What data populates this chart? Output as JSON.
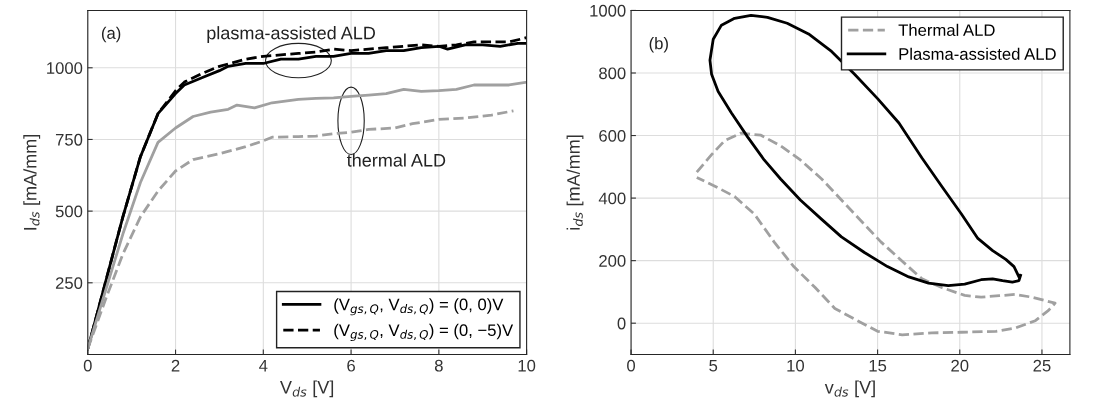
{
  "chart_data": [
    {
      "type": "line",
      "xlabel": "V$_{ds}$ [V]",
      "ylabel": "I$_{ds}$ [mA/mm]",
      "xlim": [
        0,
        10
      ],
      "ylim": [
        0,
        1200
      ],
      "xticks": [
        0,
        2,
        4,
        6,
        8,
        10
      ],
      "yticks": [
        250,
        500,
        750,
        1000
      ],
      "grid": true,
      "legend": "bottom right",
      "annotations": [
        "(a)",
        "plasma-assisted ALD",
        "thermal ALD"
      ],
      "series": [
        {
          "name": "(V$_{gs,Q}$, V$_{ds,Q}$) = (0, 0)V",
          "color": "#000000",
          "line_style": "solid",
          "x": [
            0,
            0.4,
            0.8,
            1.2,
            1.6,
            2.0,
            2.2,
            2.6,
            3.0,
            3.2,
            3.6,
            4.0,
            4.4,
            4.8,
            5.2,
            5.6,
            6.0,
            6.4,
            6.8,
            7.2,
            7.6,
            8.0,
            8.2,
            8.6,
            9.0,
            9.4,
            9.8,
            10
          ],
          "values": [
            20,
            250,
            480,
            690,
            840,
            910,
            940,
            965,
            990,
            1005,
            1015,
            1015,
            1030,
            1030,
            1040,
            1040,
            1050,
            1050,
            1060,
            1060,
            1070,
            1075,
            1065,
            1080,
            1080,
            1075,
            1085,
            1085
          ]
        },
        {
          "name": "(V$_{gs,Q}$, V$_{ds,Q}$) = (0, −5)V",
          "color": "#000000",
          "line_style": "dashed",
          "x": [
            0,
            0.4,
            0.8,
            1.2,
            1.6,
            2.0,
            2.2,
            2.6,
            3.0,
            3.6,
            4.0,
            4.4,
            4.8,
            5.2,
            5.6,
            6.0,
            6.4,
            6.8,
            7.2,
            7.6,
            8.0,
            8.4,
            8.8,
            9.2,
            9.6,
            10
          ],
          "values": [
            20,
            250,
            480,
            690,
            840,
            920,
            950,
            980,
            1005,
            1030,
            1040,
            1045,
            1050,
            1055,
            1065,
            1060,
            1065,
            1070,
            1075,
            1080,
            1075,
            1080,
            1090,
            1090,
            1090,
            1105
          ]
        },
        {
          "color": "#a0a0a0",
          "line_style": "solid",
          "x": [
            0,
            0.4,
            0.8,
            1.2,
            1.6,
            2.0,
            2.4,
            2.8,
            3.2,
            3.4,
            3.8,
            4.2,
            4.8,
            5.2,
            5.6,
            6.0,
            6.4,
            6.8,
            7.2,
            7.6,
            8.0,
            8.4,
            8.8,
            9.2,
            9.6,
            10
          ],
          "values": [
            20,
            220,
            420,
            600,
            740,
            790,
            830,
            845,
            855,
            870,
            860,
            878,
            890,
            893,
            895,
            900,
            905,
            910,
            925,
            918,
            920,
            925,
            940,
            940,
            940,
            950
          ]
        },
        {
          "color": "#a0a0a0",
          "line_style": "dashed",
          "x": [
            0,
            0.4,
            0.8,
            1.2,
            1.6,
            2.0,
            2.4,
            3.0,
            3.6,
            4.0,
            4.2,
            4.8,
            5.2,
            5.6,
            6.0,
            6.4,
            7.0,
            7.4,
            8.0,
            8.6,
            9.2,
            9.7
          ],
          "values": [
            20,
            190,
            350,
            480,
            570,
            640,
            680,
            700,
            725,
            745,
            758,
            760,
            762,
            770,
            775,
            785,
            790,
            805,
            820,
            825,
            835,
            850
          ]
        }
      ]
    },
    {
      "type": "line",
      "xlabel": "v$_{ds}$ [V]",
      "ylabel": "i$_{ds}$ [mA/mm]",
      "xlim": [
        0,
        26.7
      ],
      "ylim": [
        -100,
        1000
      ],
      "xticks": [
        0,
        5,
        10,
        15,
        20,
        25
      ],
      "yticks": [
        0,
        200,
        400,
        600,
        800,
        1000
      ],
      "grid": true,
      "legend": "top right",
      "annotations": [
        "(b)"
      ],
      "series": [
        {
          "name": "Thermal ALD",
          "color": "#a0a0a0",
          "line_style": "dashed",
          "x": [
            4.0,
            4.9,
            5.7,
            6.7,
            7.9,
            9.1,
            10.3,
            11.6,
            12.8,
            14,
            15.2,
            16.5,
            17.7,
            18.9,
            20.3,
            21.3,
            22.4,
            23.4,
            24.4,
            25.8,
            25.4,
            24.6,
            23.4,
            22.2,
            20.1,
            18.3,
            16.5,
            15,
            13.6,
            12.4,
            11.2,
            9.9,
            8.7,
            7.5,
            6.3,
            5.1,
            4.0
          ],
          "values": [
            483,
            539,
            584,
            608,
            601,
            567,
            522,
            461,
            394,
            327,
            260,
            198,
            142,
            114,
            89,
            83,
            88,
            92,
            83,
            64,
            41,
            8,
            -15,
            -26,
            -29,
            -31,
            -37,
            -26,
            13,
            47,
            114,
            181,
            260,
            349,
            405,
            438,
            466
          ]
        },
        {
          "name": "Plasma-assisted ALD",
          "color": "#000000",
          "line_style": "solid",
          "x": [
            23.6,
            23.3,
            22.8,
            22,
            21.1,
            20.1,
            18.9,
            17.7,
            16.3,
            15,
            13.6,
            12.2,
            10.8,
            9.5,
            8.3,
            7.3,
            6.3,
            5.5,
            5.0,
            4.8,
            4.9,
            5.3,
            6.1,
            7.1,
            8.1,
            9.1,
            10.3,
            11.6,
            12.8,
            14.2,
            15.6,
            16.9,
            18.1,
            19.3,
            20.3,
            21.3,
            22,
            22.6,
            23.2,
            23.6,
            23.7
          ],
          "values": [
            148,
            181,
            204,
            232,
            271,
            349,
            438,
            528,
            640,
            718,
            796,
            869,
            925,
            959,
            978,
            984,
            975,
            953,
            908,
            841,
            796,
            741,
            673,
            595,
            522,
            461,
            394,
            332,
            276,
            226,
            181,
            148,
            128,
            120,
            125,
            139,
            142,
            136,
            131,
            136,
            153
          ]
        }
      ]
    }
  ]
}
